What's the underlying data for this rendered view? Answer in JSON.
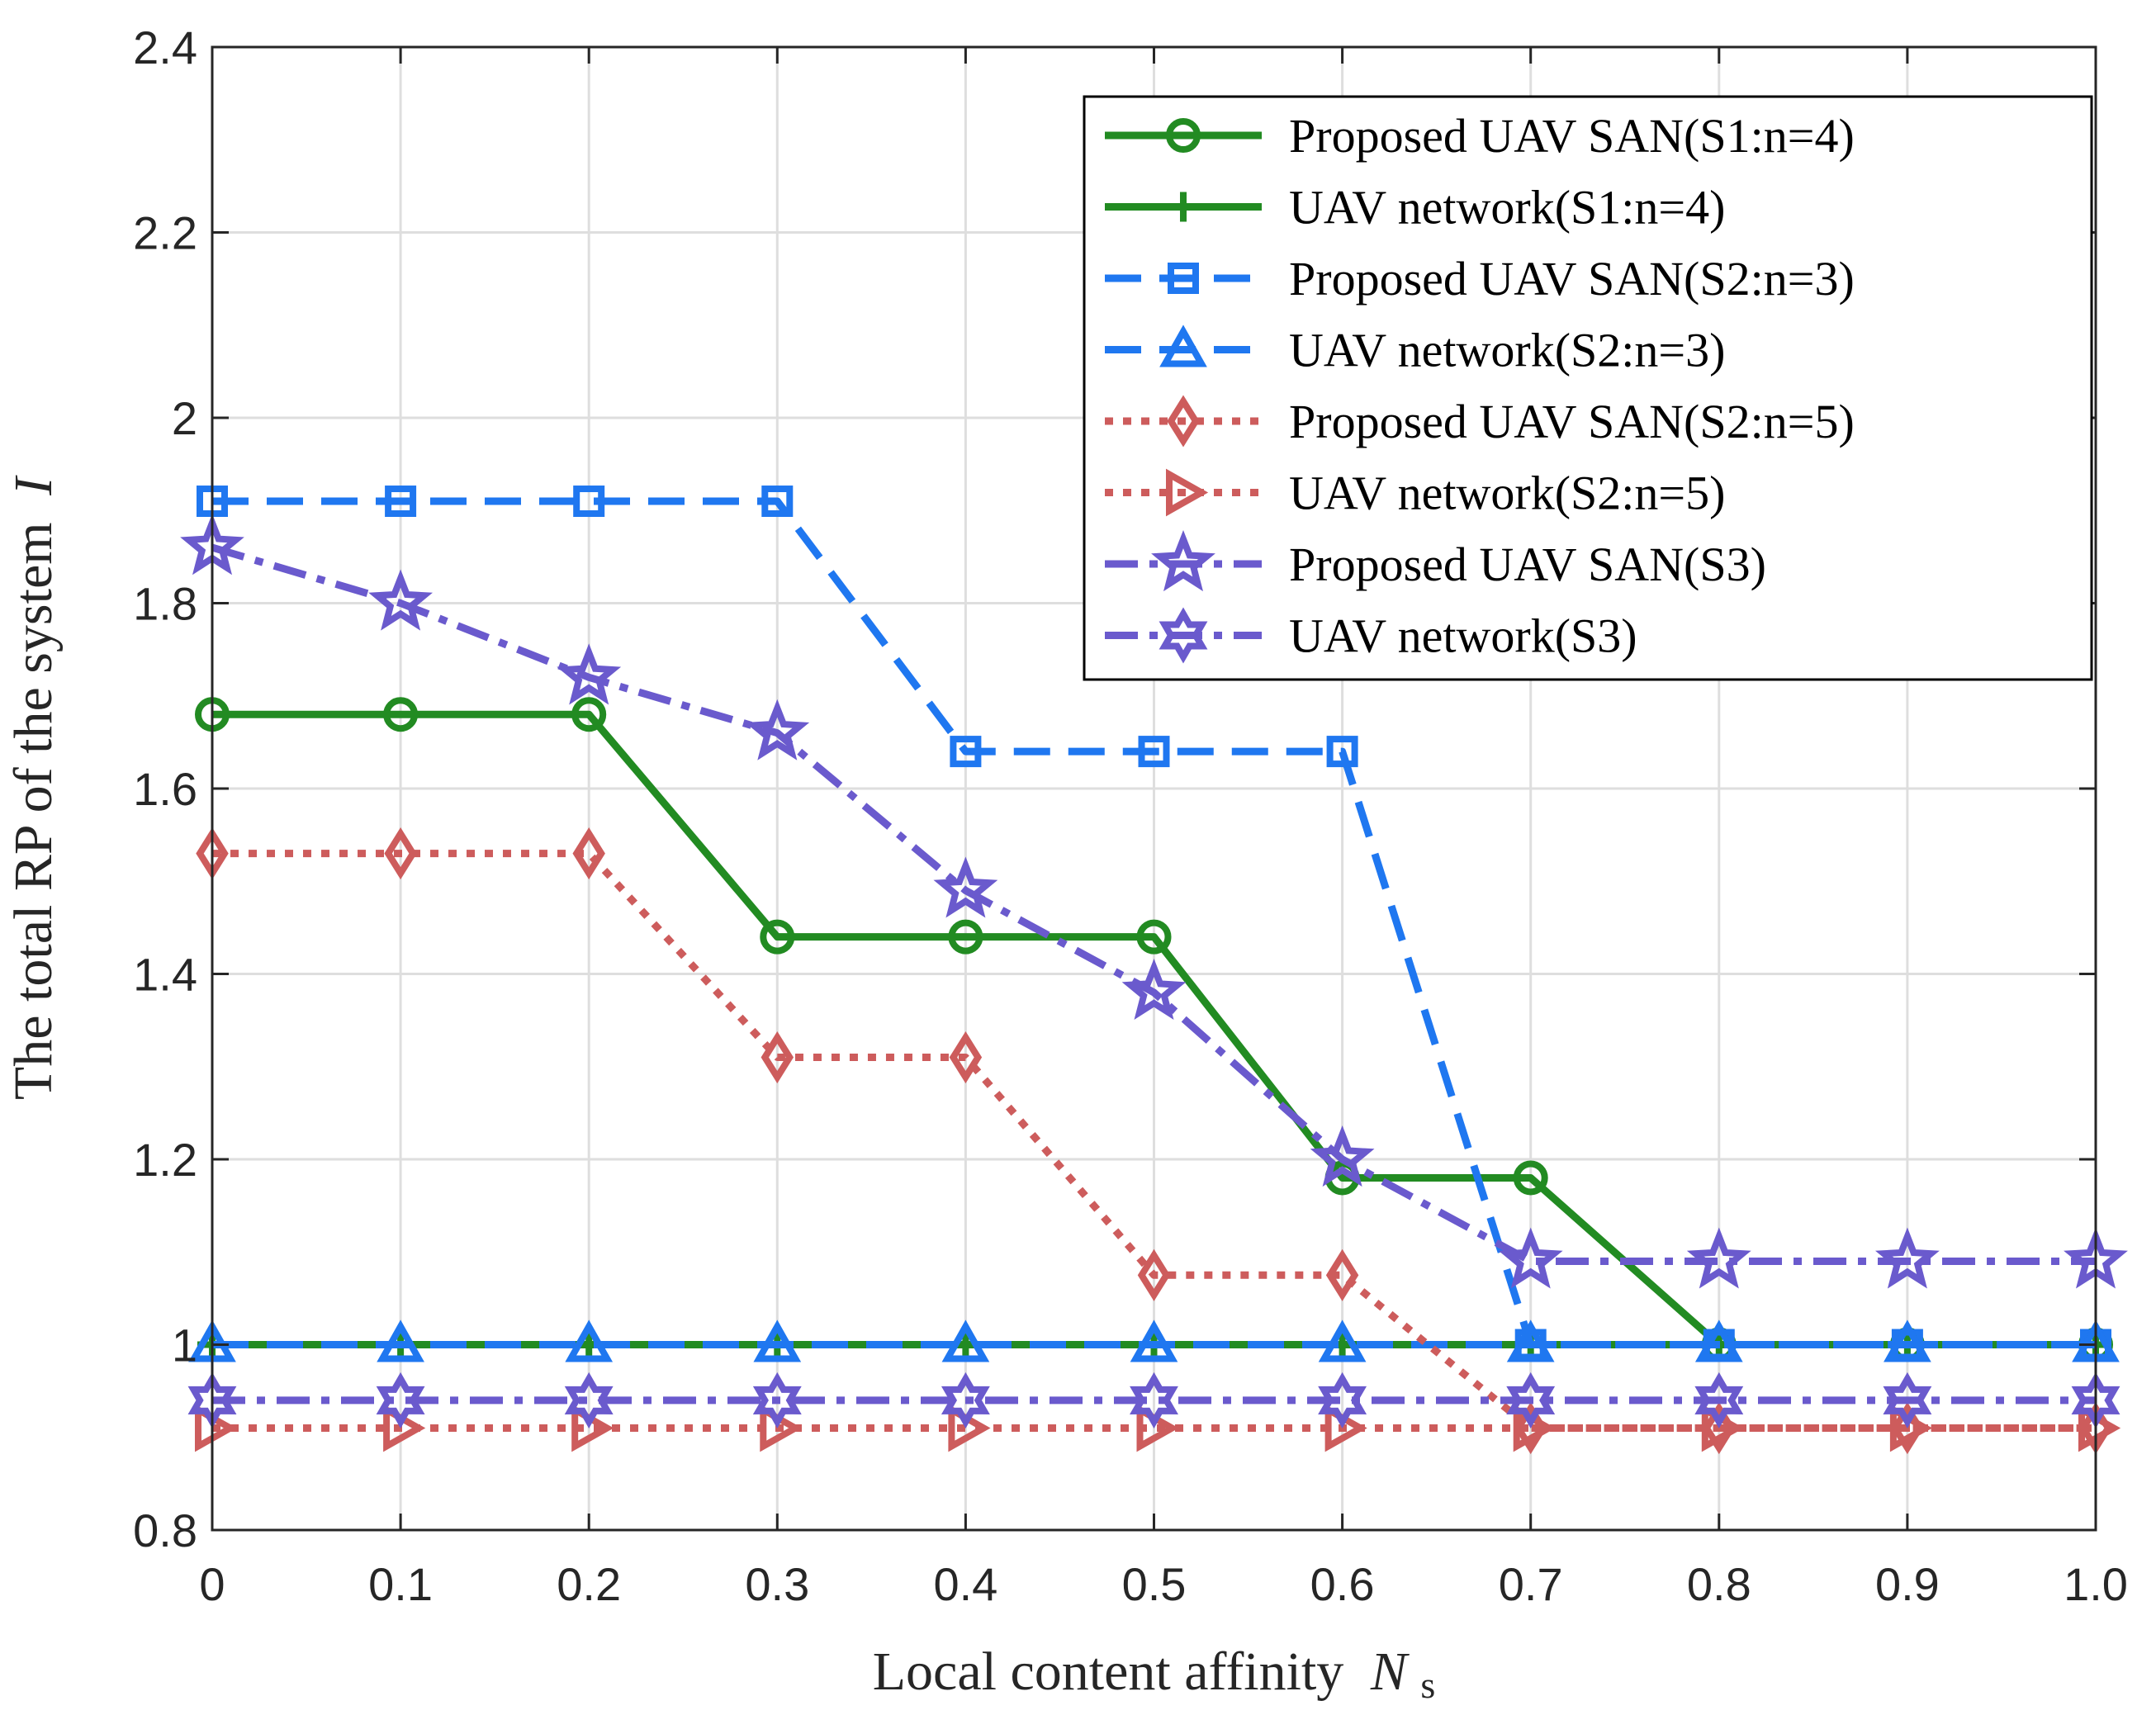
{
  "chart_data": {
    "type": "line",
    "title": "",
    "xlabel": "Local content affinity",
    "xlabel_symbol": "N",
    "xlabel_subscript": "s",
    "ylabel": "The total RP of the system",
    "ylabel_symbol": "I",
    "x": [
      0,
      0.1,
      0.2,
      0.3,
      0.4,
      0.5,
      0.6,
      0.7,
      0.8,
      0.9,
      1.0
    ],
    "xticks": [
      "0",
      "0.1",
      "0.2",
      "0.3",
      "0.4",
      "0.5",
      "0.6",
      "0.7",
      "0.8",
      "0.9",
      "1.0"
    ],
    "xlim": [
      0,
      1.0
    ],
    "ylim": [
      0.8,
      2.4
    ],
    "yticks": [
      "0.8",
      "1",
      "1.2",
      "1.4",
      "1.6",
      "1.8",
      "2",
      "2.2",
      "2.4"
    ],
    "grid": true,
    "legend_position": "top-right",
    "series": [
      {
        "name": "Proposed UAV SAN(S1:n=4)",
        "color": "#228b22",
        "dash": "solid",
        "marker": "circle",
        "values": [
          1.68,
          1.68,
          1.68,
          1.44,
          1.44,
          1.44,
          1.18,
          1.18,
          1.0,
          1.0,
          1.0
        ]
      },
      {
        "name": "UAV network(S1:n=4)",
        "color": "#228b22",
        "dash": "solid",
        "marker": "plus",
        "values": [
          1.0,
          1.0,
          1.0,
          1.0,
          1.0,
          1.0,
          1.0,
          1.0,
          1.0,
          1.0,
          1.0
        ]
      },
      {
        "name": "Proposed UAV SAN(S2:n=3)",
        "color": "#1f77f0",
        "dash": "dashed",
        "marker": "square",
        "values": [
          1.91,
          1.91,
          1.91,
          1.91,
          1.64,
          1.64,
          1.64,
          1.0,
          1.0,
          1.0,
          1.0
        ]
      },
      {
        "name": "UAV network(S2:n=3)",
        "color": "#1f77f0",
        "dash": "dashed",
        "marker": "triangle",
        "values": [
          1.0,
          1.0,
          1.0,
          1.0,
          1.0,
          1.0,
          1.0,
          1.0,
          1.0,
          1.0,
          1.0
        ]
      },
      {
        "name": "Proposed UAV SAN(S2:n=5)",
        "color": "#cd5c5c",
        "dash": "dotted",
        "marker": "diamond",
        "values": [
          1.53,
          1.53,
          1.53,
          1.31,
          1.31,
          1.075,
          1.075,
          0.91,
          0.91,
          0.91,
          0.91
        ]
      },
      {
        "name": "UAV network(S2:n=5)",
        "color": "#cd5c5c",
        "dash": "dotted",
        "marker": "triangle-right",
        "values": [
          0.91,
          0.91,
          0.91,
          0.91,
          0.91,
          0.91,
          0.91,
          0.91,
          0.91,
          0.91,
          0.91
        ]
      },
      {
        "name": "Proposed UAV SAN(S3)",
        "color": "#6a5acd",
        "dash": "dashdot",
        "marker": "pentagram",
        "values": [
          1.86,
          1.8,
          1.72,
          1.66,
          1.49,
          1.38,
          1.2,
          1.09,
          1.09,
          1.09,
          1.09
        ]
      },
      {
        "name": "UAV network(S3)",
        "color": "#6a5acd",
        "dash": "dashdot",
        "marker": "hexagram",
        "values": [
          0.94,
          0.94,
          0.94,
          0.94,
          0.94,
          0.94,
          0.94,
          0.94,
          0.94,
          0.94,
          0.94
        ]
      }
    ]
  }
}
